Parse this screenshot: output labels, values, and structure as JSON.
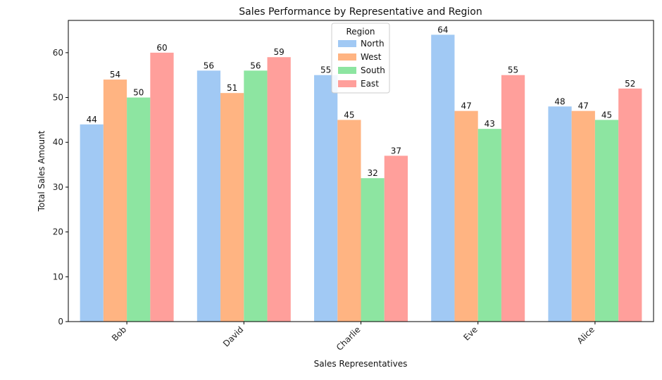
{
  "chart_data": {
    "type": "bar",
    "title": "Sales Performance by Representative and Region",
    "xlabel": "Sales Representatives",
    "ylabel": "Total Sales Amount",
    "categories": [
      "Bob",
      "David",
      "Charlie",
      "Eve",
      "Alice"
    ],
    "series": [
      {
        "name": "North",
        "values": [
          44,
          56,
          55,
          64,
          48
        ],
        "color": "#a1c9f4"
      },
      {
        "name": "West",
        "values": [
          54,
          51,
          45,
          47,
          47
        ],
        "color": "#ffb482"
      },
      {
        "name": "South",
        "values": [
          50,
          56,
          32,
          43,
          45
        ],
        "color": "#8de5a1"
      },
      {
        "name": "East",
        "values": [
          60,
          59,
          37,
          55,
          52
        ],
        "color": "#ff9f9b"
      }
    ],
    "ylim": [
      0,
      67.2
    ],
    "yticks": [
      0,
      10,
      20,
      30,
      40,
      50,
      60
    ],
    "grid": false,
    "legend": {
      "title": "Region",
      "placement": "top-center"
    },
    "data_labels": true
  }
}
